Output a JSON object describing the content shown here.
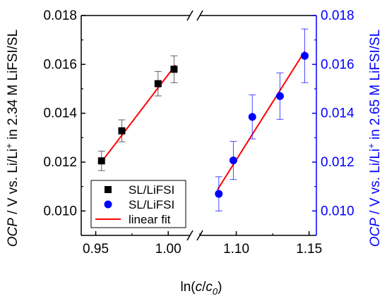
{
  "chart_data": {
    "type": "scatter",
    "xlabel_parts": [
      "ln(",
      "c",
      "/",
      "c",
      "0",
      ")"
    ],
    "ylabel_left_parts": [
      "OCP",
      " / V vs. Li/Li",
      "+",
      " in 2.34 M LiFSI/SL"
    ],
    "ylabel_right_parts": [
      "OCP",
      " / V vs. Li/Li",
      "+",
      " in 2.65 M LiFSI/SL"
    ],
    "left_panel": {
      "xlim": [
        0.94,
        1.015
      ],
      "ylim": [
        0.009,
        0.018
      ],
      "xticks": [
        "0.95",
        "1.00"
      ],
      "xtick_values": [
        0.95,
        1.0
      ]
    },
    "right_panel": {
      "xlim": [
        1.075,
        1.155
      ],
      "ylim": [
        0.009,
        0.018
      ],
      "xticks": [
        "1.10",
        "1.15"
      ],
      "xtick_values": [
        1.1,
        1.15
      ]
    },
    "yticks": [
      "0.010",
      "0.012",
      "0.014",
      "0.016",
      "0.018"
    ],
    "ytick_values": [
      0.01,
      0.012,
      0.014,
      0.016,
      0.018
    ],
    "series": [
      {
        "name": "SL/LiFSI",
        "axis": "left",
        "marker": "square",
        "color": "#000000",
        "x": [
          0.954,
          0.968,
          0.993,
          1.004
        ],
        "y": [
          0.01205,
          0.01328,
          0.01521,
          0.0158
        ],
        "err": [
          0.0004,
          0.00045,
          0.0005,
          0.00055
        ]
      },
      {
        "name": "SL/LiFSI",
        "axis": "right",
        "marker": "circle",
        "color": "#0000ff",
        "x": [
          1.088,
          1.098,
          1.111,
          1.13,
          1.147
        ],
        "y": [
          0.0107,
          0.01207,
          0.01385,
          0.0147,
          0.01635
        ],
        "err": [
          0.0007,
          0.00078,
          0.0009,
          0.00095,
          0.0011
        ]
      }
    ],
    "fits": [
      {
        "name": "linear fit",
        "axis": "left",
        "color": "#ff0000",
        "x": [
          0.953,
          1.005
        ],
        "y": [
          0.01193,
          0.01597
        ]
      },
      {
        "name": "linear fit",
        "axis": "right",
        "color": "#ff0000",
        "x": [
          1.087,
          1.147
        ],
        "y": [
          0.01086,
          0.01654
        ]
      }
    ],
    "legend": [
      {
        "label": "SL/LiFSI",
        "marker": "square",
        "color": "#000000"
      },
      {
        "label": "SL/LiFSI",
        "marker": "circle",
        "color": "#0000ff"
      },
      {
        "label": "linear fit",
        "marker": "line",
        "color": "#ff0000"
      }
    ],
    "legend_position": "bottom-left",
    "colors": {
      "left_axis": "#000000",
      "right_axis": "#0000ff",
      "fit": "#ff0000"
    }
  }
}
